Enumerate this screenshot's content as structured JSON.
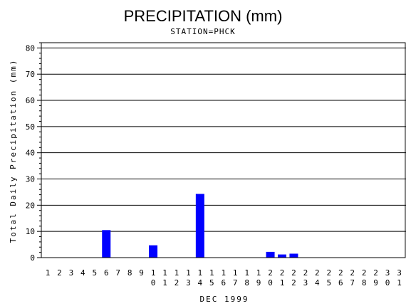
{
  "chart_data": {
    "type": "bar",
    "title": "PRECIPITATION (mm)",
    "subtitle": "STATION=PHCK",
    "xlabel": "DEC 1999",
    "ylabel": "Total Daily Precipitation (mm)",
    "ylim": [
      0,
      82
    ],
    "yticks": [
      0,
      10,
      20,
      30,
      40,
      50,
      60,
      70,
      80
    ],
    "grid": true,
    "bar_color": "#0000ff",
    "categories": [
      "1",
      "2",
      "3",
      "4",
      "5",
      "6",
      "7",
      "8",
      "9",
      "10",
      "11",
      "12",
      "13",
      "14",
      "15",
      "16",
      "17",
      "18",
      "19",
      "20",
      "21",
      "22",
      "23",
      "24",
      "25",
      "26",
      "27",
      "28",
      "29",
      "30",
      "31"
    ],
    "values": [
      0,
      0,
      0,
      0,
      0,
      10.5,
      0,
      0,
      0,
      4.7,
      0,
      0,
      0,
      24.3,
      0,
      0,
      0,
      0,
      0,
      2.2,
      1.2,
      1.5,
      0,
      0,
      0,
      0,
      0,
      0,
      0,
      0,
      0
    ]
  }
}
